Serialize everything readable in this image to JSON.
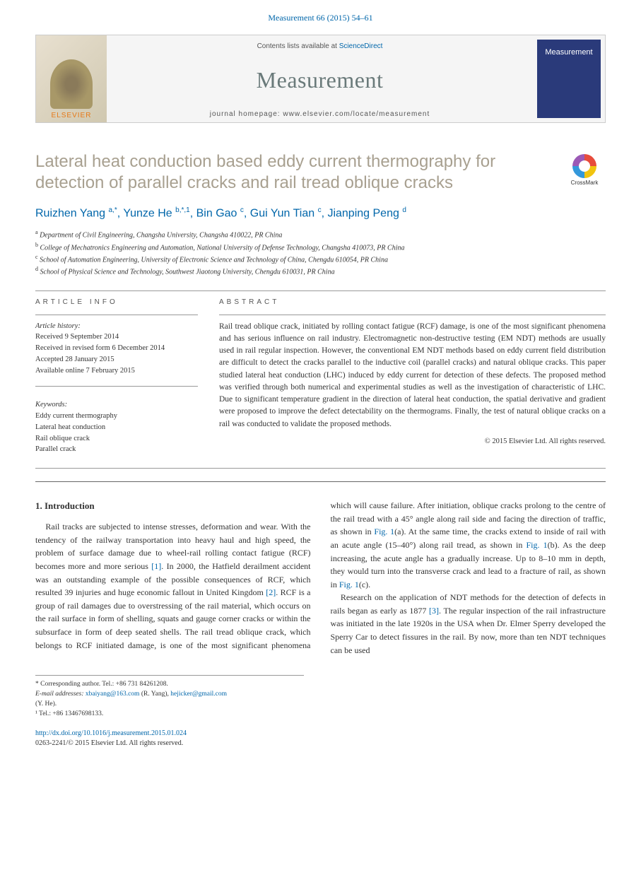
{
  "header": {
    "citation": "Measurement 66 (2015) 54–61"
  },
  "banner": {
    "elsevier": "ELSEVIER",
    "contents_prefix": "Contents lists available at ",
    "contents_link": "ScienceDirect",
    "journal": "Measurement",
    "homepage_prefix": "journal homepage: ",
    "homepage_url": "www.elsevier.com/locate/measurement",
    "cover_text": "Measurement"
  },
  "crossmark": "CrossMark",
  "title": "Lateral heat conduction based eddy current thermography for detection of parallel cracks and rail tread oblique cracks",
  "authors_html": "Ruizhen Yang <sup>a,*</sup>, Yunze He <sup>b,*,1</sup>, Bin Gao <sup>c</sup>, Gui Yun Tian <sup>c</sup>, Jianping Peng <sup>d</sup>",
  "affiliations": [
    {
      "sup": "a",
      "text": "Department of Civil Engineering, Changsha University, Changsha 410022, PR China"
    },
    {
      "sup": "b",
      "text": "College of Mechatronics Engineering and Automation, National University of Defense Technology, Changsha 410073, PR China"
    },
    {
      "sup": "c",
      "text": "School of Automation Engineering, University of Electronic Science and Technology of China, Chengdu 610054, PR China"
    },
    {
      "sup": "d",
      "text": "School of Physical Science and Technology, Southwest Jiaotong University, Chengdu 610031, PR China"
    }
  ],
  "info": {
    "label": "ARTICLE INFO",
    "history_label": "Article history:",
    "history": [
      "Received 9 September 2014",
      "Received in revised form 6 December 2014",
      "Accepted 28 January 2015",
      "Available online 7 February 2015"
    ],
    "keywords_label": "Keywords:",
    "keywords": [
      "Eddy current thermography",
      "Lateral heat conduction",
      "Rail oblique crack",
      "Parallel crack"
    ]
  },
  "abstract": {
    "label": "ABSTRACT",
    "text": "Rail tread oblique crack, initiated by rolling contact fatigue (RCF) damage, is one of the most significant phenomena and has serious influence on rail industry. Electromagnetic non-destructive testing (EM NDT) methods are usually used in rail regular inspection. However, the conventional EM NDT methods based on eddy current field distribution are difficult to detect the cracks parallel to the inductive coil (parallel cracks) and natural oblique cracks. This paper studied lateral heat conduction (LHC) induced by eddy current for detection of these defects. The proposed method was verified through both numerical and experimental studies as well as the investigation of characteristic of LHC. Due to significant temperature gradient in the direction of lateral heat conduction, the spatial derivative and gradient were proposed to improve the defect detectability on the thermograms. Finally, the test of natural oblique cracks on a rail was conducted to validate the proposed methods.",
    "copyright": "© 2015 Elsevier Ltd. All rights reserved."
  },
  "body": {
    "section_heading": "1. Introduction",
    "p1_a": "Rail tracks are subjected to intense stresses, deformation and wear. With the tendency of the railway transportation into heavy haul and high speed, the problem of surface damage due to wheel-rail rolling contact fatigue (RCF) becomes more and more serious ",
    "ref1": "[1]",
    "p1_b": ". In 2000, the Hatfield derailment accident was an outstanding example of the possible consequences of RCF, which resulted 39 injuries and huge economic fallout in United Kingdom ",
    "ref2": "[2]",
    "p1_c": ". RCF is a group of rail damages due to overstressing of the rail material, which occurs on the rail surface in form of shelling, squats and gauge corner cracks or within the subsurface in form of deep seated shells. The rail tread oblique crack, which belongs to RCF initiated damage, is one of the most significant phenomena which will cause failure. After initiation, oblique cracks prolong to the centre of the rail tread with a 45° angle along rail side and facing the direction of traffic, as shown in ",
    "fig1a": "Fig. 1",
    "p1_d": "(a). At the same time, the cracks extend to inside of rail with an acute angle (15–40°) along rail tread, as shown in ",
    "fig1b": "Fig. 1",
    "p1_e": "(b). As the deep increasing, the acute angle has a gradually increase. Up to 8–10 mm in depth, they would turn into the transverse crack and lead to a fracture of rail, as shown in ",
    "fig1c": "Fig. 1",
    "p1_f": "(c).",
    "p2_a": "Research on the application of NDT methods for the detection of defects in rails began as early as 1877 ",
    "ref3": "[3]",
    "p2_b": ". The regular inspection of the rail infrastructure was initiated in the late 1920s in the USA when Dr. Elmer Sperry developed the Sperry Car to detect fissures in the rail. By now, more than ten NDT techniques can be used"
  },
  "footnotes": {
    "corr": "* Corresponding author. Tel.: +86 731 84261208.",
    "email_label": "E-mail addresses: ",
    "email1": "xbaiyang@163.com",
    "email1_who": " (R. Yang), ",
    "email2": "hejicker@gmail.com",
    "email2_who": " (Y. He).",
    "tel1": "¹ Tel.: +86 13467698133."
  },
  "bottom": {
    "doi": "http://dx.doi.org/10.1016/j.measurement.2015.01.024",
    "issn_line": "0263-2241/© 2015 Elsevier Ltd. All rights reserved."
  },
  "colors": {
    "link": "#0066aa",
    "title": "#a8a090",
    "journal_name": "#6a7a7a",
    "elsevier": "#e67817"
  }
}
